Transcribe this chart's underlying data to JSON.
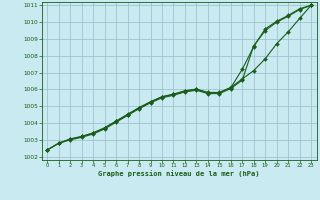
{
  "title": "Graphe pression niveau de la mer (hPa)",
  "background_color": "#c8eaf0",
  "grid_color": "#99bbcc",
  "line_color": "#1a5c1a",
  "xlim": [
    -0.5,
    23.5
  ],
  "ylim": [
    1001.8,
    1011.2
  ],
  "yticks": [
    1002,
    1003,
    1004,
    1005,
    1006,
    1007,
    1008,
    1009,
    1010,
    1011
  ],
  "xticks": [
    0,
    1,
    2,
    3,
    4,
    5,
    6,
    7,
    8,
    9,
    10,
    11,
    12,
    13,
    14,
    15,
    16,
    17,
    18,
    19,
    20,
    21,
    22,
    23
  ],
  "line1_x": [
    0,
    1,
    2,
    3,
    4,
    5,
    6,
    7,
    8,
    9,
    10,
    11,
    12,
    13,
    14,
    15,
    16,
    17,
    18,
    19,
    20,
    21,
    22,
    23
  ],
  "line1_y": [
    1002.4,
    1002.8,
    1003.0,
    1003.15,
    1003.35,
    1003.65,
    1004.05,
    1004.45,
    1004.85,
    1005.2,
    1005.5,
    1005.65,
    1005.85,
    1005.95,
    1005.75,
    1005.75,
    1006.05,
    1006.55,
    1008.6,
    1009.5,
    1010.0,
    1010.35,
    1010.75,
    1011.0
  ],
  "line2_x": [
    0,
    1,
    2,
    3,
    4,
    5,
    6,
    7,
    8,
    9,
    10,
    11,
    12,
    13,
    14,
    15,
    16,
    17,
    18,
    19,
    20,
    21,
    22,
    23
  ],
  "line2_y": [
    1002.4,
    1002.8,
    1003.05,
    1003.2,
    1003.4,
    1003.7,
    1004.1,
    1004.5,
    1004.9,
    1005.25,
    1005.55,
    1005.7,
    1005.9,
    1006.0,
    1005.8,
    1005.8,
    1006.1,
    1007.2,
    1008.55,
    1009.6,
    1010.05,
    1010.4,
    1010.8,
    1011.0
  ],
  "line3_x": [
    0,
    1,
    2,
    3,
    4,
    5,
    6,
    7,
    8,
    9,
    10,
    11,
    12,
    13,
    14,
    15,
    16,
    17,
    18,
    19,
    20,
    21,
    22,
    23
  ],
  "line3_y": [
    1002.4,
    1002.8,
    1003.05,
    1003.2,
    1003.42,
    1003.72,
    1004.12,
    1004.52,
    1004.92,
    1005.27,
    1005.57,
    1005.72,
    1005.92,
    1006.02,
    1005.82,
    1005.82,
    1006.12,
    1006.62,
    1007.12,
    1007.82,
    1008.72,
    1009.42,
    1010.22,
    1011.0
  ],
  "marker": "D",
  "markersize": 2.0,
  "linewidth": 0.8
}
